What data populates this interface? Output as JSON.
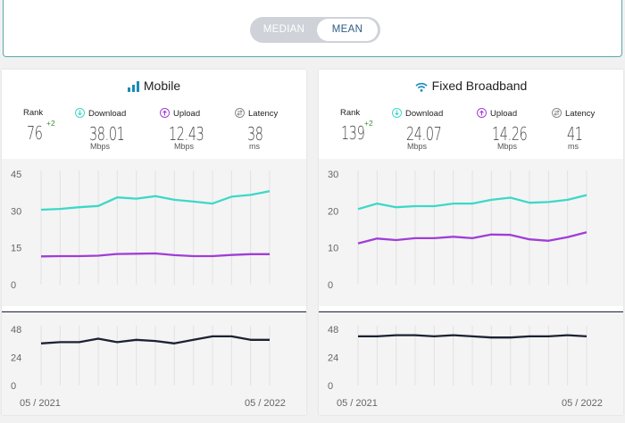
{
  "toggle": {
    "options": [
      "MEDIAN",
      "MEAN"
    ],
    "selected": "MEAN"
  },
  "colors": {
    "download": "#3dd8c8",
    "upload": "#a03ed6",
    "latency": "#1c2233",
    "accent": "#1a8bb8",
    "rank_delta": "#3a8e3a"
  },
  "x_labels": [
    "05 / 2021",
    "05 / 2022"
  ],
  "stat_labels": {
    "rank": "Rank",
    "download": "Download",
    "upload": "Upload",
    "latency": "Latency"
  },
  "panels": [
    {
      "title": "Mobile",
      "icon": "signal-bars-icon",
      "rank": "76",
      "rank_delta": "+2",
      "download": "38.01",
      "download_unit": "Mbps",
      "upload": "12.43",
      "upload_unit": "Mbps",
      "latency": "38",
      "latency_unit": "ms"
    },
    {
      "title": "Fixed Broadband",
      "icon": "wifi-icon",
      "rank": "139",
      "rank_delta": "+2",
      "download": "24.07",
      "download_unit": "Mbps",
      "upload": "14.26",
      "upload_unit": "Mbps",
      "latency": "41",
      "latency_unit": "ms"
    }
  ],
  "chart_data": [
    {
      "type": "line",
      "panel": "Mobile",
      "ylim": [
        0,
        45
      ],
      "yticks": [
        0,
        15,
        30,
        45
      ],
      "series": [
        {
          "name": "Download",
          "values": [
            30.5,
            30.8,
            31.5,
            32,
            35.5,
            35,
            36,
            34.5,
            33.8,
            33,
            35.8,
            36.5,
            38
          ]
        },
        {
          "name": "Upload",
          "values": [
            11.5,
            11.6,
            11.6,
            11.8,
            12.5,
            12.6,
            12.7,
            12,
            11.6,
            11.6,
            12.1,
            12.4,
            12.4
          ]
        }
      ]
    },
    {
      "type": "line",
      "panel": "Mobile",
      "ylim": [
        0,
        48
      ],
      "yticks": [
        0,
        24,
        48
      ],
      "series": [
        {
          "name": "Latency",
          "values": [
            36,
            37,
            37,
            40,
            37,
            39,
            38,
            36,
            39,
            42,
            42,
            39,
            39
          ]
        }
      ]
    },
    {
      "type": "line",
      "panel": "Fixed Broadband",
      "ylim": [
        0,
        30
      ],
      "yticks": [
        0,
        10,
        20,
        30
      ],
      "series": [
        {
          "name": "Download",
          "values": [
            20.5,
            22,
            21,
            21.3,
            21.3,
            22,
            22,
            23,
            23.6,
            22.2,
            22.4,
            23,
            24.3
          ]
        },
        {
          "name": "Upload",
          "values": [
            11.2,
            12.5,
            12.1,
            12.6,
            12.6,
            13,
            12.6,
            13.6,
            13.5,
            12.3,
            11.9,
            12.9,
            14.2
          ]
        }
      ]
    },
    {
      "type": "line",
      "panel": "Fixed Broadband",
      "ylim": [
        0,
        48
      ],
      "yticks": [
        0,
        24,
        48
      ],
      "series": [
        {
          "name": "Latency",
          "values": [
            42,
            42,
            43,
            43,
            42,
            43,
            42,
            41,
            41,
            42,
            42,
            43,
            42
          ]
        }
      ]
    }
  ]
}
